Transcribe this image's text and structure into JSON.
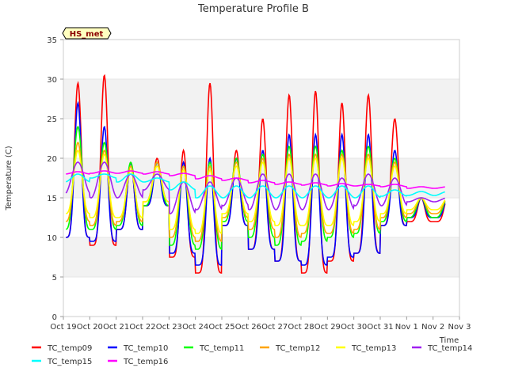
{
  "chart_data": {
    "type": "line",
    "title": "Temperature Profile B",
    "xlabel": "Time",
    "ylabel": "Temperature (C)",
    "ylim": [
      0,
      35
    ],
    "yticks": [
      0,
      5,
      10,
      15,
      20,
      25,
      30,
      35
    ],
    "xlim_days": [
      19,
      34
    ],
    "xticks": [
      "Oct 19",
      "Oct 20",
      "Oct 21",
      "Oct 22",
      "Oct 23",
      "Oct 24",
      "Oct 25",
      "Oct 26",
      "Oct 27",
      "Oct 28",
      "Oct 29",
      "Oct 30",
      "Oct 31",
      "Nov 1",
      "Nov 2",
      "Nov 3"
    ],
    "grid": "horizontal bands",
    "legend_position": "bottom",
    "annotation": "HS_met",
    "series": [
      {
        "name": "TC_temp09",
        "color": "#ff0000",
        "daily_max": [
          29.5,
          30.5,
          19.5,
          20.0,
          21.0,
          29.5,
          21.0,
          25.0,
          28.0,
          28.5,
          27.0,
          28.0,
          25.0,
          15.0
        ],
        "daily_min": [
          10.0,
          9.0,
          11.0,
          14.0,
          7.5,
          5.5,
          11.5,
          8.5,
          7.0,
          5.5,
          7.0,
          8.0,
          11.5,
          12.0
        ]
      },
      {
        "name": "TC_temp10",
        "color": "#0000ff",
        "daily_max": [
          27.0,
          24.0,
          19.5,
          19.5,
          19.5,
          20.0,
          20.0,
          21.0,
          23.0,
          23.0,
          23.0,
          23.0,
          21.0,
          15.0
        ],
        "daily_min": [
          10.0,
          9.5,
          11.0,
          14.0,
          8.0,
          6.5,
          11.5,
          8.5,
          7.0,
          6.5,
          7.5,
          8.0,
          11.5,
          12.5
        ]
      },
      {
        "name": "TC_temp11",
        "color": "#00ff00",
        "daily_max": [
          24.0,
          22.0,
          19.5,
          19.5,
          19.0,
          19.5,
          20.0,
          20.5,
          21.5,
          21.5,
          21.0,
          21.5,
          20.0,
          15.0
        ],
        "daily_min": [
          11.0,
          11.0,
          11.5,
          14.0,
          9.0,
          8.5,
          12.0,
          10.0,
          9.0,
          9.5,
          10.0,
          10.5,
          12.0,
          12.5
        ]
      },
      {
        "name": "TC_temp12",
        "color": "#ffa500",
        "daily_max": [
          22.0,
          21.0,
          19.0,
          19.5,
          19.0,
          19.0,
          19.5,
          20.0,
          20.5,
          20.5,
          20.5,
          20.5,
          19.5,
          15.0
        ],
        "daily_min": [
          12.0,
          11.5,
          12.0,
          14.5,
          10.0,
          9.5,
          12.5,
          11.0,
          10.0,
          10.5,
          10.5,
          11.0,
          12.5,
          13.0
        ]
      },
      {
        "name": "TC_temp13",
        "color": "#ffff00",
        "daily_max": [
          21.0,
          20.5,
          18.5,
          19.0,
          18.5,
          18.5,
          19.0,
          19.5,
          20.0,
          20.0,
          20.0,
          20.0,
          19.0,
          15.0
        ],
        "daily_min": [
          13.0,
          12.5,
          12.5,
          14.5,
          11.0,
          10.5,
          13.0,
          12.0,
          11.5,
          11.5,
          11.5,
          12.0,
          13.0,
          13.5
        ]
      },
      {
        "name": "TC_temp14",
        "color": "#a020f0",
        "daily_max": [
          19.5,
          19.5,
          18.0,
          18.0,
          17.0,
          17.0,
          17.5,
          18.0,
          18.0,
          18.0,
          17.5,
          18.0,
          17.5,
          15.0
        ],
        "daily_min": [
          15.5,
          15.0,
          15.0,
          16.0,
          13.0,
          13.5,
          14.0,
          13.5,
          13.5,
          13.5,
          13.5,
          14.0,
          14.0,
          14.5
        ]
      },
      {
        "name": "TC_temp15",
        "color": "#00ffff",
        "daily_max": [
          18.0,
          18.0,
          18.0,
          17.5,
          17.0,
          16.5,
          16.5,
          16.5,
          16.5,
          16.5,
          16.5,
          16.5,
          16.0,
          15.8
        ],
        "daily_min": [
          17.0,
          17.5,
          17.0,
          17.0,
          16.0,
          15.0,
          15.0,
          15.0,
          15.0,
          15.0,
          15.0,
          15.0,
          15.2,
          15.3
        ]
      },
      {
        "name": "TC_temp16",
        "color": "#ff00ff",
        "daily_max": [
          18.3,
          18.4,
          18.4,
          18.3,
          18.1,
          17.8,
          17.5,
          17.2,
          17.0,
          16.9,
          16.8,
          16.7,
          16.7,
          16.4
        ],
        "daily_min": [
          18.0,
          18.1,
          18.1,
          18.0,
          17.8,
          17.4,
          17.2,
          16.9,
          16.7,
          16.6,
          16.5,
          16.5,
          16.4,
          16.2
        ]
      }
    ]
  }
}
